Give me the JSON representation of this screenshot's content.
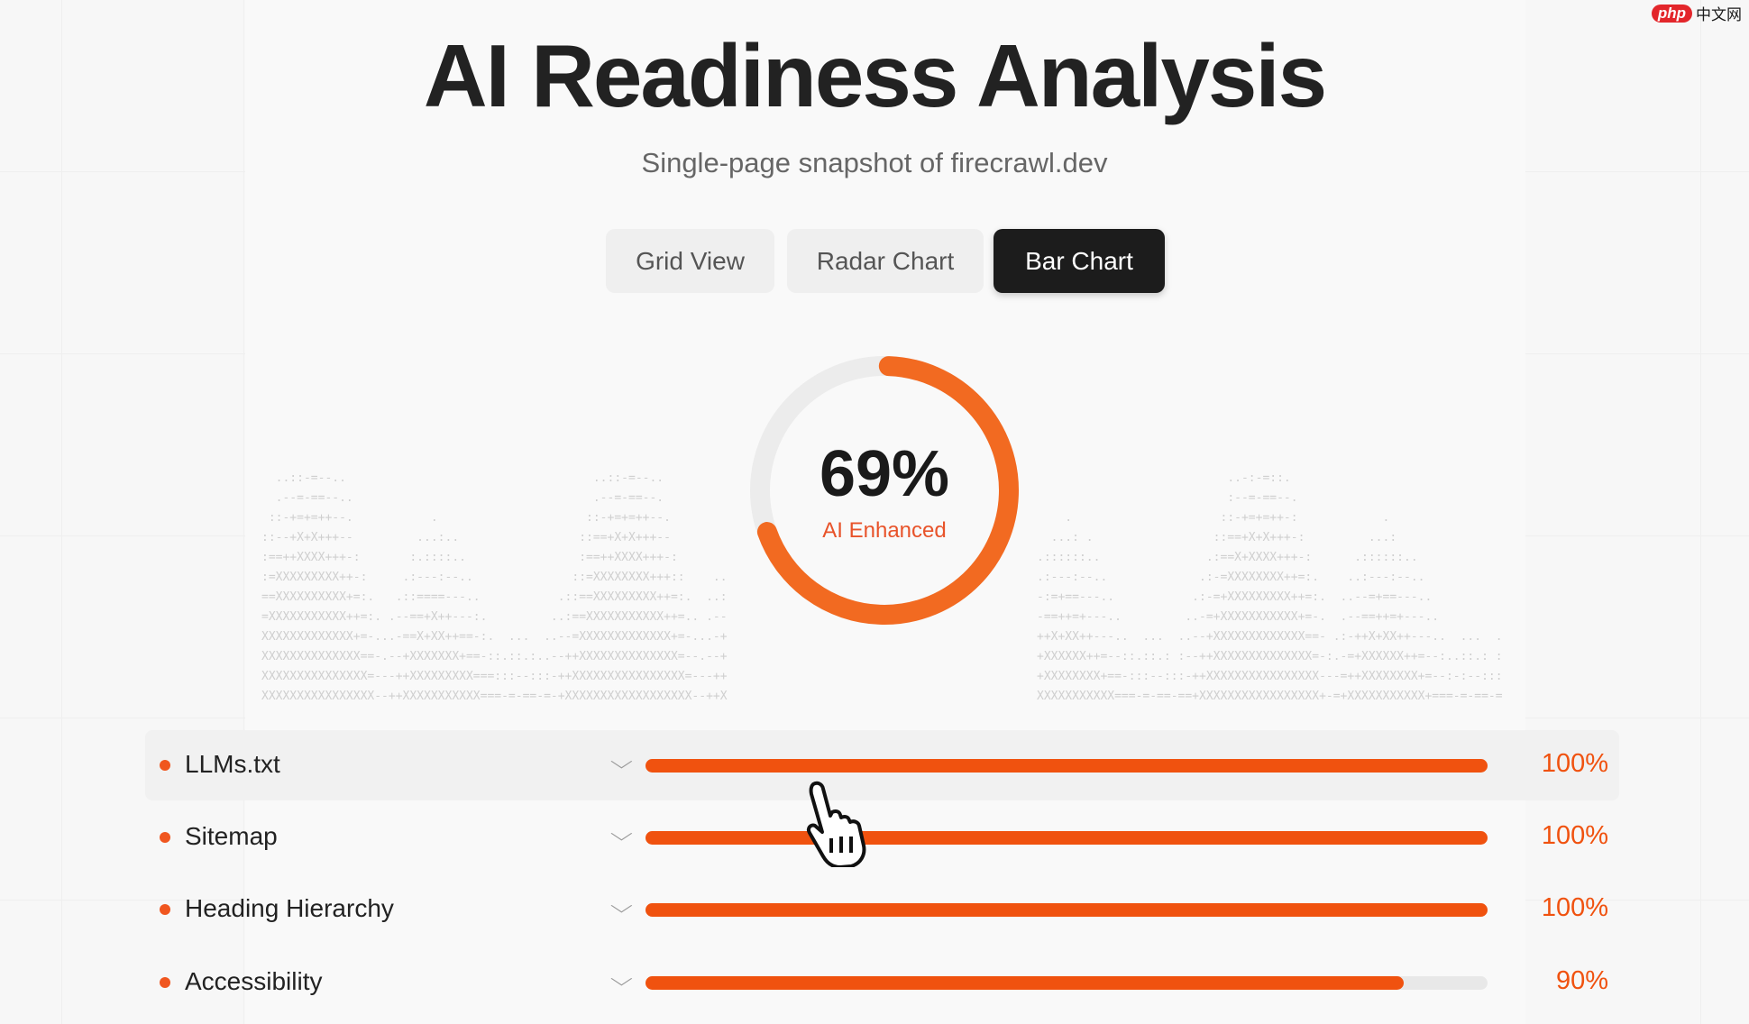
{
  "header": {
    "title": "AI Readiness Analysis",
    "subtitle": "Single-page snapshot of firecrawl.dev"
  },
  "tabs": [
    {
      "label": "Grid View",
      "active": false
    },
    {
      "label": "Radar Chart",
      "active": false
    },
    {
      "label": "Bar Chart",
      "active": true
    }
  ],
  "score": {
    "value": 69,
    "display": "69%",
    "label": "AI Enhanced",
    "color": "#f26a21"
  },
  "metrics": [
    {
      "label": "LLMs.txt",
      "value": 100,
      "display": "100%"
    },
    {
      "label": "Sitemap",
      "value": 100,
      "display": "100%"
    },
    {
      "label": "Heading Hierarchy",
      "value": 100,
      "display": "100%"
    },
    {
      "label": "Accessibility",
      "value": 90,
      "display": "90%"
    }
  ],
  "watermark": {
    "logo": "php",
    "text": "中文网"
  },
  "colors": {
    "accent": "#f0520f",
    "active_tab": "#1c1c1c"
  }
}
